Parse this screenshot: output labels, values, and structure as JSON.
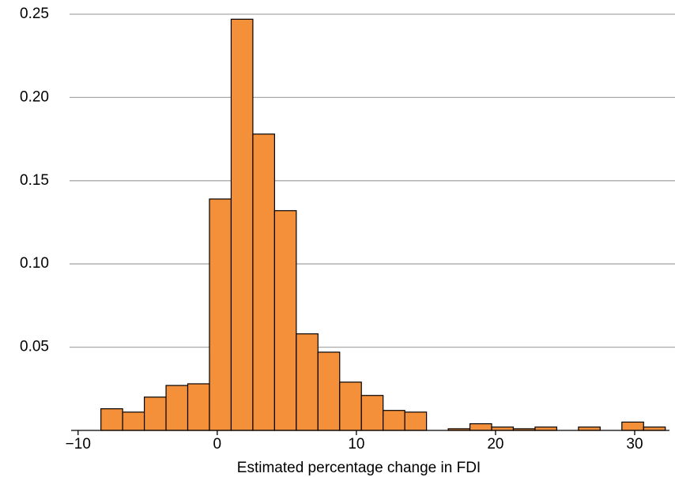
{
  "chart_data": {
    "type": "histogram",
    "x_label": "Estimated percentage change in FDI",
    "bins": [
      -8.36,
      -6.8,
      -5.24,
      -3.68,
      -2.12,
      -0.56,
      1.0,
      2.56,
      4.12,
      5.68,
      7.24,
      8.8,
      10.36,
      11.92,
      13.48,
      15.04,
      16.6,
      18.16,
      19.72,
      21.28,
      22.84,
      24.4,
      25.96,
      27.52,
      29.08,
      30.64,
      32.2
    ],
    "counts": [
      0.013,
      0.011,
      0.02,
      0.027,
      0.028,
      0.139,
      0.247,
      0.178,
      0.132,
      0.058,
      0.047,
      0.029,
      0.021,
      0.012,
      0.011,
      0,
      0.001,
      0.004,
      0.002,
      0.001,
      0.002,
      0,
      0.002,
      0,
      0.005,
      0.002
    ],
    "color": "#f5903a",
    "xlim": [
      -10.5,
      32.5
    ],
    "xticks": [
      {
        "value": -10,
        "label": "−10"
      },
      0,
      10,
      20,
      30
    ],
    "ylim": [
      0,
      0.25
    ],
    "yticks": [
      0.05,
      {
        "value": 0.1,
        "label": "0.10"
      },
      0.15,
      {
        "value": 0.2,
        "label": "0.20"
      },
      0.25
    ],
    "grid": true
  }
}
